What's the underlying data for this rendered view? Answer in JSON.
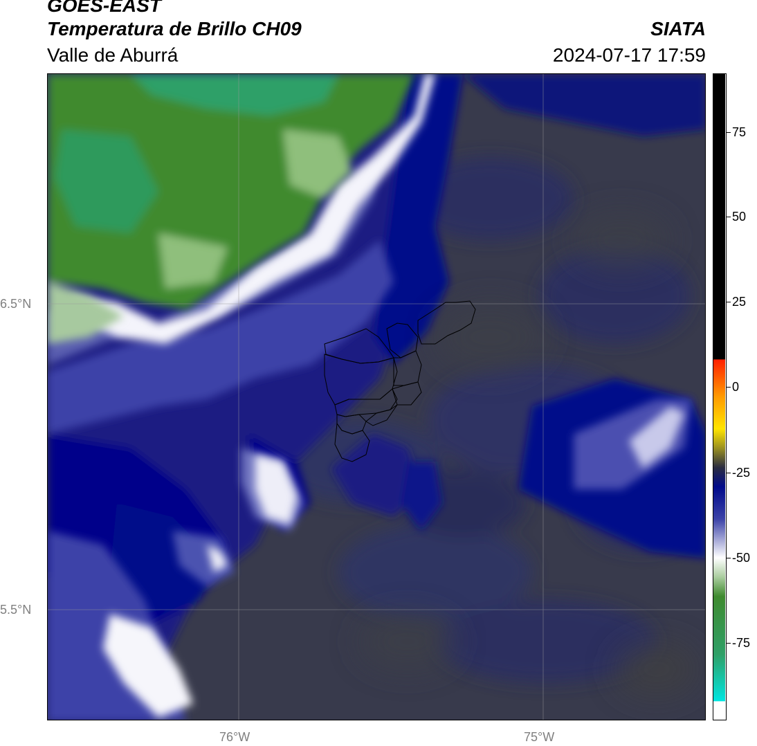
{
  "header": {
    "title_line1": "GOES-EAST",
    "title_line2": "Temperatura de Brillo CH09",
    "subtitle": "Valle de Aburrá",
    "brand": "SIATA",
    "datetime": "2024-07-17 17:59"
  },
  "map": {
    "latitude_labels": [
      "6.5°N",
      "5.5°N"
    ],
    "longitude_labels": [
      "76°W",
      "75°W"
    ],
    "region_outline": "Valle de Aburrá municipalities"
  },
  "colorbar": {
    "tick_labels": [
      "75",
      "50",
      "25",
      "0",
      "-25",
      "-50",
      "-75"
    ],
    "tick_values": [
      75,
      50,
      25,
      0,
      -25,
      -50,
      -75
    ],
    "range": [
      -93,
      92
    ],
    "colors": {
      "coldest": "#00e5e0",
      "green": "#2e8b35",
      "white": "#ffffff",
      "blue_dark": "#000a8a",
      "gray_warm": "#3b3b45",
      "yellow": "#ffe400",
      "red": "#ff2000",
      "black": "#000000"
    }
  }
}
